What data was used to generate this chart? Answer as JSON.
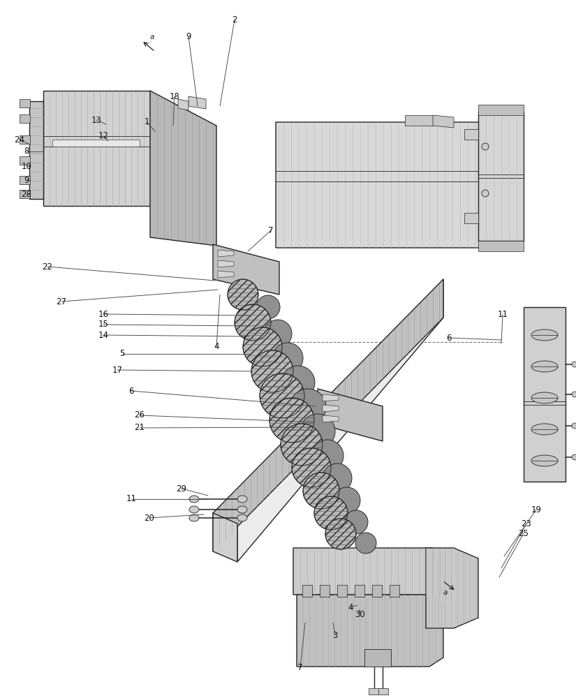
{
  "bg_color": "#ffffff",
  "line_color": "#222222",
  "figsize": [
    8.25,
    10.0
  ],
  "dpi": 100,
  "labels": [
    [
      "2",
      336,
      28,
      315,
      152
    ],
    [
      "9",
      270,
      52,
      283,
      152
    ],
    [
      "18",
      250,
      138,
      248,
      180
    ],
    [
      "1",
      210,
      175,
      222,
      188
    ],
    [
      "13",
      138,
      172,
      152,
      178
    ],
    [
      "12",
      148,
      195,
      155,
      202
    ],
    [
      "8",
      38,
      217,
      62,
      217
    ],
    [
      "24",
      28,
      200,
      43,
      207
    ],
    [
      "10",
      38,
      238,
      43,
      238
    ],
    [
      "9",
      38,
      258,
      43,
      258
    ],
    [
      "28",
      38,
      278,
      43,
      278
    ],
    [
      "7",
      388,
      330,
      355,
      360
    ],
    [
      "22",
      68,
      382,
      308,
      402
    ],
    [
      "27",
      88,
      432,
      312,
      415
    ],
    [
      "4",
      310,
      497,
      315,
      422
    ],
    [
      "16",
      148,
      450,
      358,
      452
    ],
    [
      "15",
      148,
      465,
      358,
      467
    ],
    [
      "14",
      148,
      480,
      358,
      482
    ],
    [
      "5",
      175,
      507,
      358,
      507
    ],
    [
      "17",
      168,
      530,
      362,
      532
    ],
    [
      "26",
      200,
      595,
      450,
      605
    ],
    [
      "21",
      200,
      613,
      447,
      612
    ],
    [
      "6",
      188,
      560,
      452,
      582
    ],
    [
      "11",
      188,
      715,
      298,
      715
    ],
    [
      "29",
      260,
      700,
      298,
      710
    ],
    [
      "20",
      214,
      742,
      292,
      737
    ],
    [
      "6",
      643,
      484,
      718,
      487
    ],
    [
      "11",
      720,
      450,
      718,
      492
    ],
    [
      "19",
      768,
      730,
      722,
      797
    ],
    [
      "23",
      754,
      750,
      718,
      814
    ],
    [
      "25",
      750,
      764,
      715,
      827
    ],
    [
      "4",
      502,
      870,
      512,
      867
    ],
    [
      "30",
      516,
      880,
      515,
      873
    ],
    [
      "3",
      480,
      910,
      477,
      892
    ],
    [
      "7",
      430,
      957,
      437,
      892
    ]
  ],
  "springs": [
    [
      348,
      422,
      22,
      true
    ],
    [
      384,
      440,
      17,
      false
    ],
    [
      362,
      462,
      26,
      true
    ],
    [
      398,
      478,
      20,
      false
    ],
    [
      376,
      497,
      28,
      true
    ],
    [
      412,
      513,
      22,
      false
    ],
    [
      390,
      532,
      30,
      true
    ],
    [
      427,
      548,
      24,
      false
    ],
    [
      404,
      567,
      32,
      true
    ],
    [
      441,
      583,
      26,
      false
    ],
    [
      418,
      602,
      32,
      true
    ],
    [
      455,
      618,
      25,
      false
    ],
    [
      432,
      637,
      30,
      true
    ],
    [
      469,
      653,
      23,
      false
    ],
    [
      446,
      670,
      28,
      true
    ],
    [
      483,
      685,
      21,
      false
    ],
    [
      460,
      703,
      26,
      true
    ],
    [
      497,
      717,
      19,
      false
    ],
    [
      474,
      735,
      24,
      true
    ],
    [
      510,
      748,
      17,
      false
    ],
    [
      488,
      765,
      22,
      true
    ],
    [
      524,
      778,
      15,
      false
    ]
  ]
}
